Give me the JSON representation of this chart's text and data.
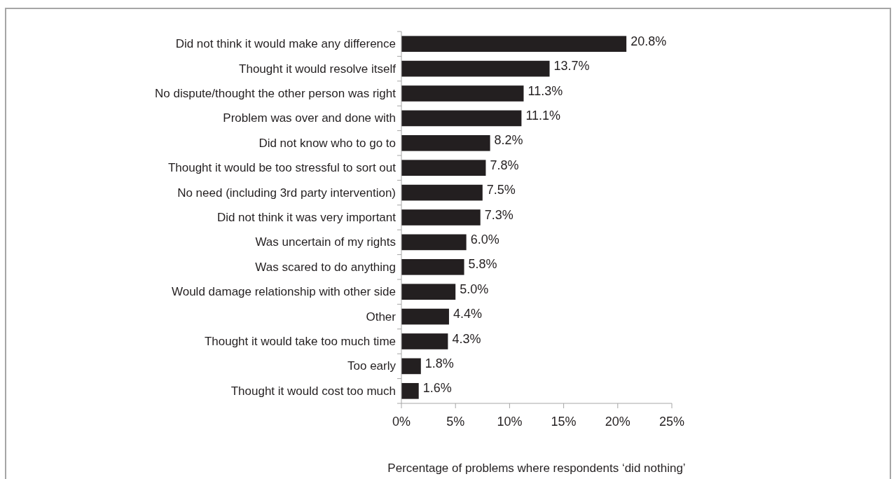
{
  "chart_data": {
    "type": "bar",
    "orientation": "horizontal",
    "xlabel": "Percentage of problems where respondents ‘did nothing’",
    "categories": [
      "Did not think it would make any difference",
      "Thought it would resolve itself",
      "No dispute/thought the other person was right",
      "Problem was over and done with",
      "Did not know who to go to",
      "Thought it would be too stressful to sort out",
      "No need (including 3rd party intervention)",
      "Did not think it was very important",
      "Was uncertain of my rights",
      "Was scared to do anything",
      "Would damage relationship with other side",
      "Other",
      "Thought it would take too much time",
      "Too early",
      "Thought it would cost too much"
    ],
    "values": [
      20.8,
      13.7,
      11.3,
      11.1,
      8.2,
      7.8,
      7.5,
      7.3,
      6.0,
      5.8,
      5.0,
      4.4,
      4.3,
      1.8,
      1.6
    ],
    "value_labels": [
      "20.8%",
      "13.7%",
      "11.3%",
      "11.1%",
      "8.2%",
      "7.8%",
      "7.5%",
      "7.3%",
      "6.0%",
      "5.8%",
      "5.0%",
      "4.4%",
      "4.3%",
      "1.8%",
      "1.6%"
    ],
    "color": "#231f20",
    "xlim": [
      0,
      25
    ],
    "xticks": [
      {
        "value": 0,
        "label": "0%"
      },
      {
        "value": 5,
        "label": "5%"
      },
      {
        "value": 10,
        "label": "10%"
      },
      {
        "value": 15,
        "label": "15%"
      },
      {
        "value": 20,
        "label": "20%"
      },
      {
        "value": 25,
        "label": "25%"
      }
    ],
    "grid": false
  }
}
